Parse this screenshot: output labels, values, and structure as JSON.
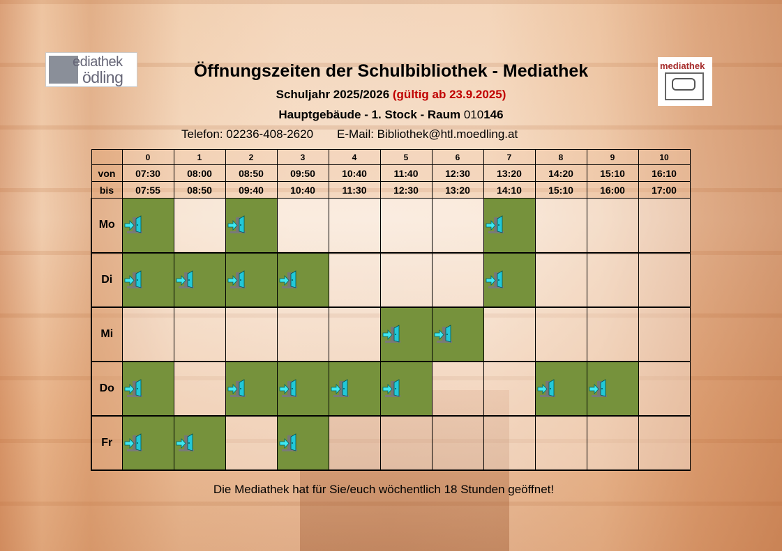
{
  "logos": {
    "left_text": [
      "ediathek",
      "ödling"
    ],
    "right_text": "mediathek"
  },
  "header": {
    "title": "Öffnungszeiten der Schulbibliothek - Mediathek",
    "schoolyear": "Schuljahr 2025/2026",
    "validity": "(gültig ab 23.9.2025)",
    "location": "Hauptgebäude - 1. Stock - Raum",
    "room_prefix": "010",
    "room_suffix": "146",
    "phone": "Telefon: 02236-408-2620",
    "email": "E-Mail: Bibliothek@htl.moedling.at"
  },
  "colors": {
    "open": "#76923c",
    "validity": "#c00000"
  },
  "schedule": {
    "periods": [
      "0",
      "1",
      "2",
      "3",
      "4",
      "5",
      "6",
      "7",
      "8",
      "9",
      "10"
    ],
    "von_label": "von",
    "bis_label": "bis",
    "von": [
      "07:30",
      "08:00",
      "08:50",
      "09:50",
      "10:40",
      "11:40",
      "12:30",
      "13:20",
      "14:20",
      "15:10",
      "16:10"
    ],
    "bis": [
      "07:55",
      "08:50",
      "09:40",
      "10:40",
      "11:30",
      "12:30",
      "13:20",
      "14:10",
      "15:10",
      "16:00",
      "17:00"
    ],
    "open_icon": "door-enter-icon",
    "days": [
      {
        "label": "Mo",
        "open": [
          0,
          2,
          7
        ]
      },
      {
        "label": "Di",
        "open": [
          0,
          1,
          2,
          3,
          7
        ]
      },
      {
        "label": "Mi",
        "open": [
          5,
          6
        ]
      },
      {
        "label": "Do",
        "open": [
          0,
          2,
          3,
          4,
          5,
          8,
          9
        ]
      },
      {
        "label": "Fr",
        "open": [
          0,
          1,
          3
        ]
      }
    ]
  },
  "footer": "Die Mediathek hat für Sie/euch wöchentlich 18 Stunden geöffnet!"
}
